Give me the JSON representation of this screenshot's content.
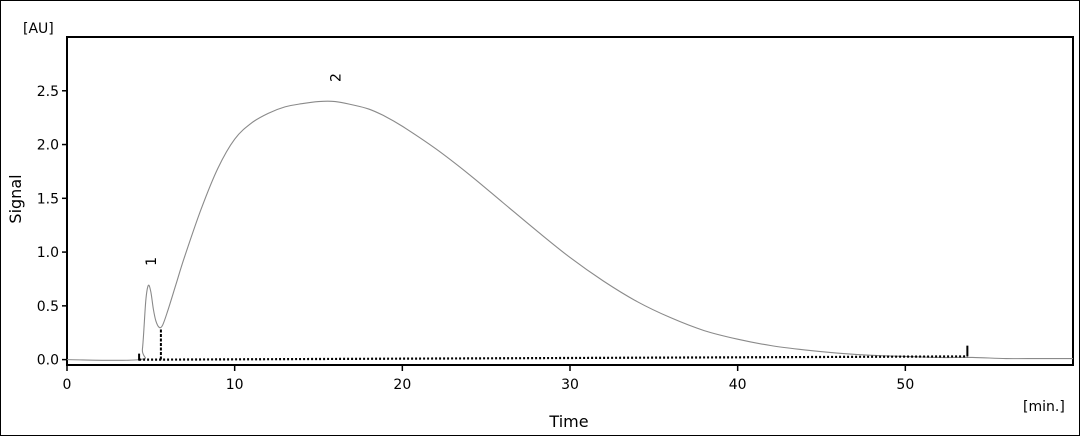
{
  "chart_data": {
    "type": "line",
    "title": "",
    "xlabel": "Time",
    "ylabel": "Signal",
    "x_unit": "[min.]",
    "y_unit": "[AU]",
    "xlim": [
      0,
      60
    ],
    "ylim": [
      -0.05,
      3.0
    ],
    "x_ticks": [
      "0",
      "10",
      "20",
      "30",
      "40",
      "50"
    ],
    "y_ticks": [
      "0.0",
      "0.5",
      "1.0",
      "1.5",
      "2.0",
      "2.5"
    ],
    "x_tick_values": [
      0,
      10,
      20,
      30,
      40,
      50
    ],
    "y_tick_values": [
      0.0,
      0.5,
      1.0,
      1.5,
      2.0,
      2.5
    ],
    "grid": false,
    "series": [
      {
        "x": [
          0,
          4.3,
          4.5,
          4.7,
          4.85,
          5.0,
          5.15,
          5.3,
          5.5,
          5.7,
          6.0,
          6.5,
          7.0,
          8.0,
          9.0,
          10.0,
          11.0,
          12.0,
          13.0,
          14.0,
          15.0,
          16.0,
          17.0,
          18.0,
          19.0,
          20.0,
          22.0,
          24.0,
          26.0,
          28.0,
          30.0,
          32.0,
          34.0,
          36.0,
          38.0,
          40.0,
          42.0,
          44.0,
          46.0,
          48.0,
          50.0,
          52.0,
          54.0,
          56.0,
          58.0,
          60.0
        ],
        "y": [
          0.0,
          0.0,
          0.1,
          0.55,
          0.69,
          0.63,
          0.47,
          0.36,
          0.3,
          0.32,
          0.45,
          0.7,
          0.95,
          1.4,
          1.78,
          2.05,
          2.2,
          2.29,
          2.35,
          2.38,
          2.4,
          2.4,
          2.37,
          2.33,
          2.26,
          2.17,
          1.96,
          1.72,
          1.46,
          1.2,
          0.95,
          0.73,
          0.54,
          0.39,
          0.27,
          0.19,
          0.13,
          0.09,
          0.06,
          0.04,
          0.03,
          0.02,
          0.02,
          0.01,
          0.01,
          0.01
        ]
      }
    ],
    "peaks": [
      {
        "label": "1",
        "x": 5.0,
        "y": 0.69
      },
      {
        "label": "2",
        "x": 16.0,
        "y": 2.4
      }
    ],
    "baseline": {
      "x": [
        4.3,
        5.6,
        53.7
      ],
      "y": [
        0.0,
        0.0,
        0.03
      ]
    },
    "integration_marks": [
      {
        "x": 5.6,
        "y_top": 0.28
      },
      {
        "x": 53.7,
        "y_top": 0.13
      }
    ],
    "colors": {
      "signal": "#8a8a8a",
      "axis": "#000000",
      "baseline": "#000000"
    }
  }
}
